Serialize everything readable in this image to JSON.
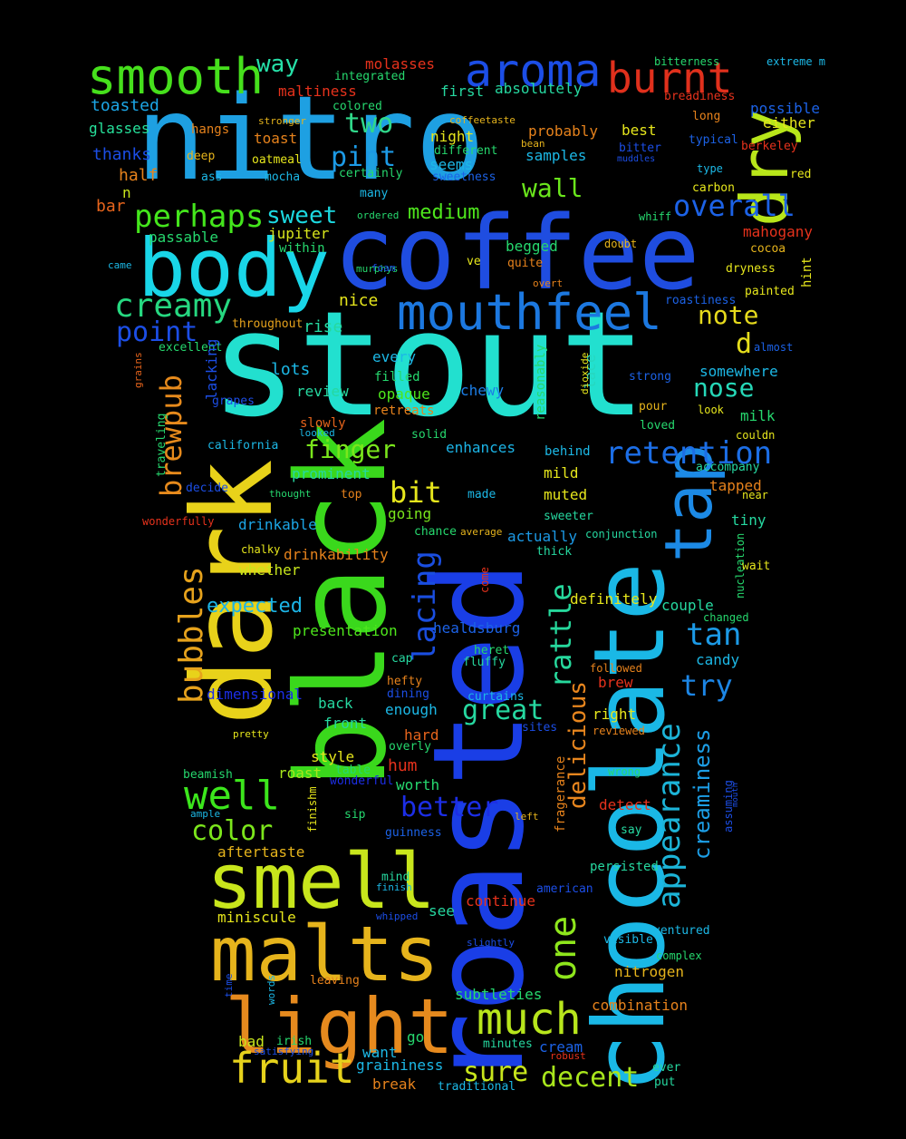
{
  "words": [
    {
      "text": "stout",
      "color": "#22e0cf"
    },
    {
      "text": "nitro",
      "color": "#1ea0e2"
    },
    {
      "text": "coffee",
      "color": "#1f4de0"
    },
    {
      "text": "roasted",
      "color": "#1a3ee6"
    },
    {
      "text": "chocolate",
      "color": "#1ab8e6"
    },
    {
      "text": "black",
      "color": "#3ad81c"
    },
    {
      "text": "dark",
      "color": "#e8d21a"
    },
    {
      "text": "body",
      "color": "#19d6e8"
    },
    {
      "text": "smell",
      "color": "#c8e61c"
    },
    {
      "text": "malts",
      "color": "#e6b41c"
    },
    {
      "text": "light",
      "color": "#e68a1e"
    },
    {
      "text": "tap",
      "color": "#1c8ae6"
    },
    {
      "text": "dry",
      "color": "#b8e61a"
    },
    {
      "text": "mouthfeel",
      "color": "#1c78e0"
    },
    {
      "text": "smooth",
      "color": "#46e01c"
    },
    {
      "text": "aroma",
      "color": "#1c4ee6"
    },
    {
      "text": "burnt",
      "color": "#e0301c"
    },
    {
      "text": "fruit",
      "color": "#e6d21c"
    },
    {
      "text": "much",
      "color": "#b8e61c"
    },
    {
      "text": "creamy",
      "color": "#26d880"
    },
    {
      "text": "perhaps",
      "color": "#44e61c"
    },
    {
      "text": "retention",
      "color": "#1c6ee6"
    },
    {
      "text": "appearance",
      "color": "#1cb4d8"
    },
    {
      "text": "lacing",
      "color": "#1a4ee0"
    },
    {
      "text": "bubbles",
      "color": "#e6a21c"
    },
    {
      "text": "well",
      "color": "#3ce61c"
    },
    {
      "text": "brewpub",
      "color": "#e68a1c"
    },
    {
      "text": "delicious",
      "color": "#e8861e"
    },
    {
      "text": "one",
      "color": "#8ee61c"
    },
    {
      "text": "rattle",
      "color": "#26d89c"
    },
    {
      "text": "creaminess",
      "color": "#1c9ee6"
    },
    {
      "text": "sweet",
      "color": "#1cd8e0"
    },
    {
      "text": "pint",
      "color": "#1c9ae6"
    },
    {
      "text": "two",
      "color": "#30d88a"
    },
    {
      "text": "wall",
      "color": "#6ae61c"
    },
    {
      "text": "way",
      "color": "#26e0a8"
    },
    {
      "text": "overall",
      "color": "#1c62e6"
    },
    {
      "text": "note",
      "color": "#e6da1c"
    },
    {
      "text": "nose",
      "color": "#26d8b8"
    },
    {
      "text": "point",
      "color": "#1c4ee6"
    },
    {
      "text": "finger",
      "color": "#7ae61c"
    },
    {
      "text": "bit",
      "color": "#e6e61c"
    },
    {
      "text": "better",
      "color": "#1c2ee6"
    },
    {
      "text": "great",
      "color": "#26d8a0"
    },
    {
      "text": "tan",
      "color": "#1c9ae6"
    },
    {
      "text": "try",
      "color": "#1c86e6"
    },
    {
      "text": "color",
      "color": "#7ce61c"
    },
    {
      "text": "decent",
      "color": "#a8e61c"
    },
    {
      "text": "sure",
      "color": "#c8e61c"
    },
    {
      "text": "medium",
      "color": "#4ee61c"
    },
    {
      "text": "d",
      "color": "#e6de1c"
    },
    {
      "text": "expected",
      "color": "#1cb4e6"
    },
    {
      "text": "toasted",
      "color": "#1ca6e6"
    },
    {
      "text": "glasses",
      "color": "#26e09a"
    },
    {
      "text": "thanks",
      "color": "#1c4ee6"
    },
    {
      "text": "half",
      "color": "#e6821c"
    },
    {
      "text": "bar",
      "color": "#e6641c"
    },
    {
      "text": "n",
      "color": "#c8e61c"
    },
    {
      "text": "passable",
      "color": "#26d86e"
    },
    {
      "text": "jupiter",
      "color": "#d8e61c"
    },
    {
      "text": "within",
      "color": "#26d86e"
    },
    {
      "text": "nice",
      "color": "#e6e61c"
    },
    {
      "text": "rise",
      "color": "#26d8a0"
    },
    {
      "text": "throughout",
      "color": "#e6a21c"
    },
    {
      "text": "excellent",
      "color": "#26d86e"
    },
    {
      "text": "lots",
      "color": "#1cb8e6"
    },
    {
      "text": "review",
      "color": "#26d8a0"
    },
    {
      "text": "every",
      "color": "#1cb8e6"
    },
    {
      "text": "filled",
      "color": "#26d86e"
    },
    {
      "text": "opaque",
      "color": "#4ee61c"
    },
    {
      "text": "lace",
      "color": "#26d8c0"
    },
    {
      "text": "chewy",
      "color": "#1c7ee6"
    },
    {
      "text": "grapes",
      "color": "#1c4ee6"
    },
    {
      "text": "slowly",
      "color": "#e6641c"
    },
    {
      "text": "looked",
      "color": "#1cb8e6"
    },
    {
      "text": "retreats",
      "color": "#e6821c"
    },
    {
      "text": "solid",
      "color": "#26d86e"
    },
    {
      "text": "enhances",
      "color": "#1cb4e6"
    },
    {
      "text": "california",
      "color": "#1cb8e6"
    },
    {
      "text": "prominent",
      "color": "#26d8a0"
    },
    {
      "text": "drinkable",
      "color": "#1ca6e6"
    },
    {
      "text": "decide",
      "color": "#1c4ee6"
    },
    {
      "text": "thought",
      "color": "#26d86e"
    },
    {
      "text": "top",
      "color": "#e6821c"
    },
    {
      "text": "made",
      "color": "#1cb8e6"
    },
    {
      "text": "going",
      "color": "#7ae61c"
    },
    {
      "text": "drinkability",
      "color": "#e6821c"
    },
    {
      "text": "whether",
      "color": "#c8e61c"
    },
    {
      "text": "presentation",
      "color": "#4ee61c"
    },
    {
      "text": "healdsburg",
      "color": "#1c62e6"
    },
    {
      "text": "dimensional",
      "color": "#1c2ee6"
    },
    {
      "text": "back",
      "color": "#26d8a0"
    },
    {
      "text": "front",
      "color": "#26d8a0"
    },
    {
      "text": "enough",
      "color": "#1cb8e6"
    },
    {
      "text": "hard",
      "color": "#e6641c"
    },
    {
      "text": "overly",
      "color": "#26d86e"
    },
    {
      "text": "style",
      "color": "#e6e61c"
    },
    {
      "text": "roast",
      "color": "#a8e61c"
    },
    {
      "text": "table",
      "color": "#26d86e"
    },
    {
      "text": "hum",
      "color": "#e6321c"
    },
    {
      "text": "worth",
      "color": "#26d86e"
    },
    {
      "text": "wonderful",
      "color": "#1c2ee6"
    },
    {
      "text": "beamish",
      "color": "#26d86e"
    },
    {
      "text": "ample",
      "color": "#1cb8e6"
    },
    {
      "text": "sip",
      "color": "#26d86e"
    },
    {
      "text": "guinness",
      "color": "#1c62e6"
    },
    {
      "text": "aftertaste",
      "color": "#e6b41c"
    },
    {
      "text": "mind",
      "color": "#26d8a0"
    },
    {
      "text": "finish",
      "color": "#1cb8e6"
    },
    {
      "text": "whipped",
      "color": "#1c4ee6"
    },
    {
      "text": "see",
      "color": "#26d8a0"
    },
    {
      "text": "miniscule",
      "color": "#e6e61c"
    },
    {
      "text": "leaving",
      "color": "#e6821c"
    },
    {
      "text": "bad",
      "color": "#c8e61c"
    },
    {
      "text": "irish",
      "color": "#26d86e"
    },
    {
      "text": "satisfying",
      "color": "#1c4ee6"
    },
    {
      "text": "go",
      "color": "#26d86e"
    },
    {
      "text": "want",
      "color": "#1cb8e6"
    },
    {
      "text": "graininess",
      "color": "#1cb8e6"
    },
    {
      "text": "break",
      "color": "#e6821c"
    },
    {
      "text": "traditional",
      "color": "#1cb8e6"
    },
    {
      "text": "subtleties",
      "color": "#26d86e"
    },
    {
      "text": "minutes",
      "color": "#26d8a0"
    },
    {
      "text": "robust",
      "color": "#e6321c"
    },
    {
      "text": "cream",
      "color": "#1c62e6"
    },
    {
      "text": "continue",
      "color": "#e6321c"
    },
    {
      "text": "nitrogen",
      "color": "#e6b41c"
    },
    {
      "text": "combination",
      "color": "#e6821c"
    },
    {
      "text": "fluffy",
      "color": "#26d8a0"
    },
    {
      "text": "curtains",
      "color": "#1cb8e6"
    },
    {
      "text": "sites",
      "color": "#1c4ee6"
    },
    {
      "text": "heret",
      "color": "#26d86e"
    },
    {
      "text": "cap",
      "color": "#26d8a0"
    },
    {
      "text": "hefty",
      "color": "#e6821c"
    },
    {
      "text": "dining",
      "color": "#1c4ee6"
    },
    {
      "text": "molasses",
      "color": "#e6321c"
    },
    {
      "text": "maltiness",
      "color": "#e6321c"
    },
    {
      "text": "integrated",
      "color": "#26d86e"
    },
    {
      "text": "colored",
      "color": "#26d86e"
    },
    {
      "text": "first",
      "color": "#26d8a0"
    },
    {
      "text": "absolutely",
      "color": "#26d8a0"
    },
    {
      "text": "coffeetaste",
      "color": "#e6b41c"
    },
    {
      "text": "probably",
      "color": "#e6821c"
    },
    {
      "text": "best",
      "color": "#e6e61c"
    },
    {
      "text": "night",
      "color": "#e6e61c"
    },
    {
      "text": "different",
      "color": "#26d86e"
    },
    {
      "text": "bean",
      "color": "#e6b41c"
    },
    {
      "text": "seems",
      "color": "#1cb8e6"
    },
    {
      "text": "sweetness",
      "color": "#1c62e6"
    },
    {
      "text": "samples",
      "color": "#1cb8e6"
    },
    {
      "text": "certainly",
      "color": "#26d86e"
    },
    {
      "text": "many",
      "color": "#1cb8e6"
    },
    {
      "text": "ordered",
      "color": "#26d86e"
    },
    {
      "text": "murphys",
      "color": "#26d86e"
    },
    {
      "text": "foam",
      "color": "#1c4ee6"
    },
    {
      "text": "ve",
      "color": "#e6e61c"
    },
    {
      "text": "quite",
      "color": "#e6821c"
    },
    {
      "text": "begged",
      "color": "#26d86e"
    },
    {
      "text": "overt",
      "color": "#e6821c"
    },
    {
      "text": "hangs",
      "color": "#e6821c"
    },
    {
      "text": "deep",
      "color": "#e6b41c"
    },
    {
      "text": "ass",
      "color": "#1cb8e6"
    },
    {
      "text": "mocha",
      "color": "#1cb8e6"
    },
    {
      "text": "oatmeal",
      "color": "#e6e61c"
    },
    {
      "text": "toast",
      "color": "#e6821c"
    },
    {
      "text": "stronger",
      "color": "#e6b41c"
    },
    {
      "text": "came",
      "color": "#1cb8e6"
    },
    {
      "text": "grains",
      "color": "#e6641c"
    },
    {
      "text": "reasonably",
      "color": "#26d86e"
    },
    {
      "text": "dioxide",
      "color": "#e6e61c"
    },
    {
      "text": "wonderfully",
      "color": "#e6321c"
    },
    {
      "text": "traveling",
      "color": "#26d86e"
    },
    {
      "text": "chalky",
      "color": "#e6e61c"
    },
    {
      "text": "pretty",
      "color": "#e6e61c"
    },
    {
      "text": "finishm",
      "color": "#e6e61c"
    },
    {
      "text": "words",
      "color": "#1cb8e6"
    },
    {
      "text": "time",
      "color": "#1c4ee6"
    },
    {
      "text": "lacking",
      "color": "#1c4ee6"
    },
    {
      "text": "actually",
      "color": "#1c9ae6"
    },
    {
      "text": "chance",
      "color": "#26d86e"
    },
    {
      "text": "average",
      "color": "#e6b41c"
    },
    {
      "text": "come",
      "color": "#e6321c"
    },
    {
      "text": "thick",
      "color": "#26d8a0"
    },
    {
      "text": "sweeter",
      "color": "#26d8a0"
    },
    {
      "text": "conjunction",
      "color": "#26d8a0"
    },
    {
      "text": "mild",
      "color": "#e6e61c"
    },
    {
      "text": "muted",
      "color": "#e6e61c"
    },
    {
      "text": "behind",
      "color": "#1cb8e6"
    },
    {
      "text": "definitely",
      "color": "#e6e61c"
    },
    {
      "text": "couple",
      "color": "#26d8a0"
    },
    {
      "text": "changed",
      "color": "#26d86e"
    },
    {
      "text": "candy",
      "color": "#1cb8e6"
    },
    {
      "text": "followed",
      "color": "#e6821c"
    },
    {
      "text": "brew",
      "color": "#e6321c"
    },
    {
      "text": "right",
      "color": "#e6e61c"
    },
    {
      "text": "reviewed",
      "color": "#e6821c"
    },
    {
      "text": "wrong",
      "color": "#26d86e"
    },
    {
      "text": "detect",
      "color": "#e6321c"
    },
    {
      "text": "say",
      "color": "#26d8a0"
    },
    {
      "text": "left",
      "color": "#e6b41c"
    },
    {
      "text": "fragerance",
      "color": "#e6821c"
    },
    {
      "text": "persisted",
      "color": "#26d8a0"
    },
    {
      "text": "american",
      "color": "#1c4ee6"
    },
    {
      "text": "visible",
      "color": "#1cb8e6"
    },
    {
      "text": "ventured",
      "color": "#1cb8e6"
    },
    {
      "text": "complex",
      "color": "#26d86e"
    },
    {
      "text": "slightly",
      "color": "#1c4ee6"
    },
    {
      "text": "ever",
      "color": "#26d8a0"
    },
    {
      "text": "put",
      "color": "#26d8a0"
    },
    {
      "text": "assuming",
      "color": "#1c4ee6"
    },
    {
      "text": "mouth",
      "color": "#1c4ee6"
    },
    {
      "text": "bitterness",
      "color": "#26d86e"
    },
    {
      "text": "extreme m",
      "color": "#1cb8e6"
    },
    {
      "text": "breadiness",
      "color": "#e6321c"
    },
    {
      "text": "long",
      "color": "#e6821c"
    },
    {
      "text": "possible",
      "color": "#1c62e6"
    },
    {
      "text": "either",
      "color": "#e6e61c"
    },
    {
      "text": "bitter",
      "color": "#1c4ee6"
    },
    {
      "text": "muddles",
      "color": "#1c4ee6"
    },
    {
      "text": "typical",
      "color": "#1c62e6"
    },
    {
      "text": "berkeley",
      "color": "#e6321c"
    },
    {
      "text": "type",
      "color": "#1cb8e6"
    },
    {
      "text": "carbon",
      "color": "#e6e61c"
    },
    {
      "text": "red",
      "color": "#e6e61c"
    },
    {
      "text": "whiff",
      "color": "#26d86e"
    },
    {
      "text": "doubt",
      "color": "#e6b41c"
    },
    {
      "text": "mahogany",
      "color": "#e6321c"
    },
    {
      "text": "cocoa",
      "color": "#e6b41c"
    },
    {
      "text": "hint",
      "color": "#e6e61c"
    },
    {
      "text": "dryness",
      "color": "#e6e61c"
    },
    {
      "text": "painted",
      "color": "#e6e61c"
    },
    {
      "text": "roastiness",
      "color": "#1c62e6"
    },
    {
      "text": "almost",
      "color": "#1c62e6"
    },
    {
      "text": "somewhere",
      "color": "#1cb8e6"
    },
    {
      "text": "strong",
      "color": "#1c62e6"
    },
    {
      "text": "pour",
      "color": "#e6b41c"
    },
    {
      "text": "look",
      "color": "#e6e61c"
    },
    {
      "text": "loved",
      "color": "#26d86e"
    },
    {
      "text": "milk",
      "color": "#26d86e"
    },
    {
      "text": "couldn",
      "color": "#e6e61c"
    },
    {
      "text": "accompany",
      "color": "#26d8a0"
    },
    {
      "text": "tapped",
      "color": "#e6821c"
    },
    {
      "text": "near",
      "color": "#e6e61c"
    },
    {
      "text": "tiny",
      "color": "#26d8a0"
    },
    {
      "text": "nucleation",
      "color": "#26d86e"
    },
    {
      "text": "wait",
      "color": "#e6e61c"
    }
  ]
}
